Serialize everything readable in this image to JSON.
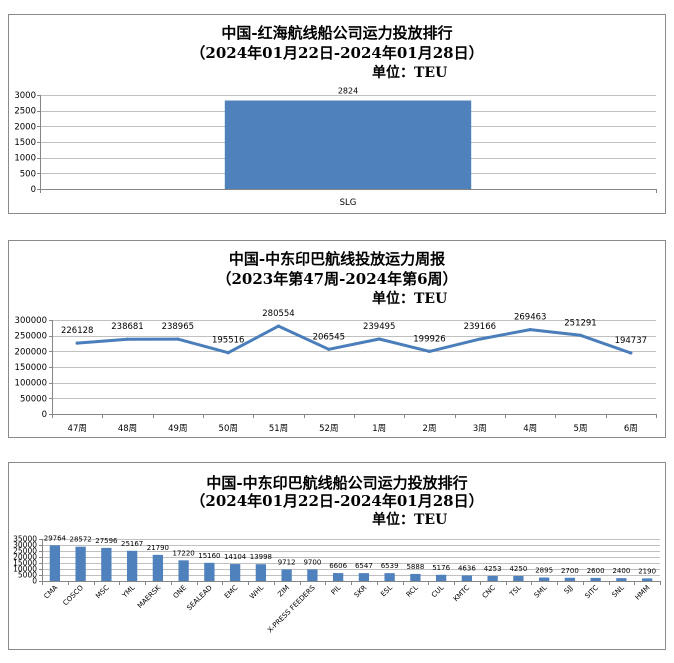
{
  "chart_data": [
    {
      "type": "bar",
      "title": "中国-红海航线船公司运力投放排行",
      "subtitle": "（2024年01月22日-2024年01月28日）",
      "unit": "单位：TEU",
      "categories": [
        "SLG"
      ],
      "values": [
        2824
      ],
      "ylim": [
        0,
        3000
      ],
      "yticks": [
        0,
        500,
        1000,
        1500,
        2000,
        2500,
        3000
      ],
      "grid": true,
      "legend": false,
      "data_labels": true,
      "color": "#4f81bd"
    },
    {
      "type": "line",
      "title": "中国-中东印巴航线投放运力周报",
      "subtitle": "（2023年第47周-2024年第6周）",
      "unit": "单位：TEU",
      "categories": [
        "47周",
        "48周",
        "49周",
        "50周",
        "51周",
        "52周",
        "1周",
        "2周",
        "3周",
        "4周",
        "5周",
        "6周"
      ],
      "values": [
        226128,
        238681,
        238965,
        195516,
        280554,
        206545,
        239495,
        199926,
        239166,
        269463,
        251291,
        194737
      ],
      "ylim": [
        0,
        300000
      ],
      "yticks": [
        0,
        50000,
        100000,
        150000,
        200000,
        250000,
        300000
      ],
      "grid": true,
      "legend": false,
      "data_labels": true,
      "color": "#4a7ebb"
    },
    {
      "type": "bar",
      "title": "中国-中东印巴航线船公司运力投放排行",
      "subtitle": "（2024年01月22日-2024年01月28日）",
      "unit": "单位：TEU",
      "categories": [
        "CMA",
        "COSCO",
        "MSC",
        "YML",
        "MAERSK",
        "ONE",
        "SEALEAD",
        "EMC",
        "WHL",
        "ZIM",
        "X-PRESS FEEDERS",
        "PIL",
        "SKR",
        "ESL",
        "RCL",
        "CUL",
        "KMTC",
        "CNC",
        "TSL",
        "SML",
        "SJJ",
        "SITC",
        "SNL",
        "HMM"
      ],
      "values": [
        29764,
        28572,
        27596,
        25167,
        21790,
        17220,
        15160,
        14104,
        13998,
        9712,
        9700,
        6606,
        6547,
        6539,
        5888,
        5176,
        4636,
        4253,
        4250,
        2895,
        2700,
        2600,
        2400,
        2190
      ],
      "ylim": [
        0,
        35000
      ],
      "yticks": [
        0,
        5000,
        10000,
        15000,
        20000,
        25000,
        30000,
        35000
      ],
      "grid": true,
      "legend": false,
      "data_labels": true,
      "color": "#4f81bd"
    }
  ]
}
